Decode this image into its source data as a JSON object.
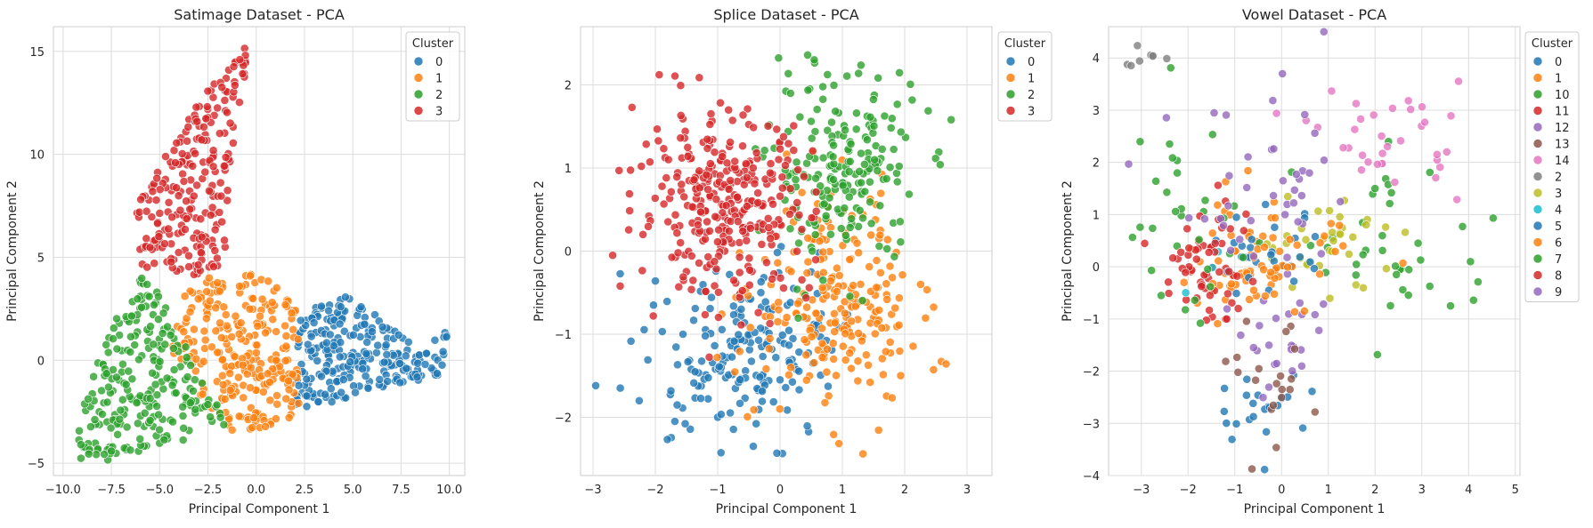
{
  "colors": {
    "0": "#1f77b4",
    "1": "#ff7f0e",
    "2": "#2ca02c",
    "3": "#d62728",
    "4": "#17becf",
    "5": "#1f77b4",
    "6": "#ff7f0e",
    "7": "#2ca02c",
    "8": "#d62728",
    "9": "#9467bd",
    "10": "#2ca02c",
    "11": "#d62728",
    "12": "#9467bd",
    "13": "#8c564b",
    "14": "#e377c2",
    "2v": "#7f7f7f",
    "3v": "#bcbd22"
  },
  "chart_data": [
    {
      "type": "scatter",
      "title": "Satimage Dataset - PCA",
      "xlabel": "Principal Component 1",
      "ylabel": "Principal Component 2",
      "xlim": [
        -10.5,
        10.8
      ],
      "ylim": [
        -5.6,
        16.2
      ],
      "xticks": [
        -10.0,
        -7.5,
        -5.0,
        -2.5,
        0.0,
        2.5,
        5.0,
        7.5,
        10.0
      ],
      "xtick_labels": [
        "−10.0",
        "−7.5",
        "−5.0",
        "−2.5",
        "0.0",
        "2.5",
        "5.0",
        "7.5",
        "10.0"
      ],
      "yticks": [
        -5,
        0,
        5,
        10,
        15
      ],
      "ytick_labels": [
        "−5",
        "0",
        "5",
        "10",
        "15"
      ],
      "grid": true,
      "legend": {
        "title": "Cluster",
        "placement": "top-right",
        "entries": [
          "0",
          "1",
          "2",
          "3"
        ]
      },
      "series": [
        {
          "name": "0",
          "color": "#1f77b4",
          "count": 260,
          "polygon": [
            [
              2.2,
              2.3
            ],
            [
              4.5,
              3.2
            ],
            [
              6.5,
              2.0
            ],
            [
              8.5,
              0.5
            ],
            [
              10.0,
              1.5
            ],
            [
              9.5,
              -0.8
            ],
            [
              7.0,
              -1.3
            ],
            [
              4.0,
              -2.0
            ],
            [
              2.0,
              -2.5
            ]
          ]
        },
        {
          "name": "1",
          "color": "#ff7f0e",
          "count": 260,
          "polygon": [
            [
              -3.8,
              3.5
            ],
            [
              -2.0,
              4.4
            ],
            [
              0.5,
              4.2
            ],
            [
              2.2,
              2.5
            ],
            [
              2.2,
              -2.6
            ],
            [
              0.5,
              -3.3
            ],
            [
              -1.3,
              -3.4
            ],
            [
              -2.2,
              -2.6
            ],
            [
              -4.5,
              0.5
            ]
          ]
        },
        {
          "name": "2",
          "color": "#2ca02c",
          "count": 240,
          "polygon": [
            [
              -7.2,
              2.5
            ],
            [
              -5.8,
              4.2
            ],
            [
              -3.8,
              1.5
            ],
            [
              -2.8,
              -1.0
            ],
            [
              -1.3,
              -3.2
            ],
            [
              -3.5,
              -3.8
            ],
            [
              -6.0,
              -4.5
            ],
            [
              -9.8,
              -5.4
            ],
            [
              -8.8,
              -1.5
            ]
          ]
        },
        {
          "name": "3",
          "color": "#d62728",
          "count": 230,
          "polygon": [
            [
              -6.0,
              4.5
            ],
            [
              -6.3,
              8.0
            ],
            [
              -3.5,
              12.0
            ],
            [
              -0.3,
              15.5
            ],
            [
              -0.8,
              12.0
            ],
            [
              -1.5,
              8.0
            ],
            [
              -1.5,
              4.5
            ],
            [
              -4.0,
              4.0
            ]
          ]
        }
      ]
    },
    {
      "type": "scatter",
      "title": "Splice Dataset - PCA",
      "xlabel": "Principal Component 1",
      "ylabel": "Principal Component 2",
      "xlim": [
        -3.2,
        3.4
      ],
      "ylim": [
        -2.7,
        2.7
      ],
      "xticks": [
        -3,
        -2,
        -1,
        0,
        1,
        2,
        3
      ],
      "xtick_labels": [
        "−3",
        "−2",
        "−1",
        "0",
        "1",
        "2",
        "3"
      ],
      "yticks": [
        -2,
        -1,
        0,
        1,
        2
      ],
      "ytick_labels": [
        "−2",
        "−1",
        "0",
        "1",
        "2"
      ],
      "grid": true,
      "legend": {
        "title": "Cluster",
        "placement": "outside-right",
        "entries": [
          "0",
          "1",
          "2",
          "3"
        ]
      },
      "series": [
        {
          "name": "0",
          "color": "#1f77b4",
          "count": 190,
          "center": [
            -0.6,
            -1.2
          ],
          "spread": [
            0.75,
            0.55
          ]
        },
        {
          "name": "1",
          "color": "#ff7f0e",
          "count": 230,
          "center": [
            0.9,
            -0.6
          ],
          "spread": [
            0.65,
            0.65
          ]
        },
        {
          "name": "2",
          "color": "#2ca02c",
          "count": 200,
          "center": [
            1.0,
            1.0
          ],
          "spread": [
            0.6,
            0.6
          ]
        },
        {
          "name": "3",
          "color": "#d62728",
          "count": 320,
          "center": [
            -0.9,
            0.55
          ],
          "spread": [
            0.7,
            0.55
          ]
        }
      ]
    },
    {
      "type": "scatter",
      "title": "Vowel Dataset - PCA",
      "xlabel": "Principal Component 1",
      "ylabel": "Principal Component 2",
      "xlim": [
        -3.7,
        5.1
      ],
      "ylim": [
        -4.0,
        4.6
      ],
      "xticks": [
        -3,
        -2,
        -1,
        0,
        1,
        2,
        3,
        4,
        5
      ],
      "xtick_labels": [
        "−3",
        "−2",
        "−1",
        "0",
        "1",
        "2",
        "3",
        "4",
        "5"
      ],
      "yticks": [
        -4,
        -3,
        -2,
        -1,
        0,
        1,
        2,
        3,
        4
      ],
      "ytick_labels": [
        "−4",
        "−3",
        "−2",
        "−1",
        "0",
        "1",
        "2",
        "3",
        "4"
      ],
      "grid": true,
      "legend": {
        "title": "Cluster",
        "placement": "outside-right",
        "entries": [
          "0",
          "1",
          "10",
          "11",
          "12",
          "13",
          "14",
          "2",
          "3",
          "4",
          "5",
          "6",
          "7",
          "8",
          "9"
        ]
      },
      "series": [
        {
          "name": "0",
          "color": "#1f77b4",
          "count": 22,
          "center": [
            -0.4,
            -2.7
          ],
          "spread": [
            0.5,
            0.35
          ]
        },
        {
          "name": "1",
          "color": "#ff7f0e",
          "count": 40,
          "center": [
            -0.9,
            0.2
          ],
          "spread": [
            0.55,
            0.6
          ]
        },
        {
          "name": "10",
          "color": "#2ca02c",
          "count": 40,
          "center": [
            2.5,
            0.4
          ],
          "spread": [
            1.1,
            0.9
          ]
        },
        {
          "name": "11",
          "color": "#d62728",
          "count": 30,
          "center": [
            -1.8,
            -0.3
          ],
          "spread": [
            0.4,
            0.5
          ]
        },
        {
          "name": "12",
          "color": "#9467bd",
          "count": 25,
          "center": [
            0.2,
            -1.4
          ],
          "spread": [
            0.45,
            0.6
          ]
        },
        {
          "name": "13",
          "color": "#8c564b",
          "count": 20,
          "center": [
            -0.2,
            -2.2
          ],
          "spread": [
            0.55,
            0.6
          ]
        },
        {
          "name": "14",
          "color": "#e377c2",
          "count": 35,
          "center": [
            2.3,
            2.5
          ],
          "spread": [
            0.8,
            0.5
          ]
        },
        {
          "name": "2",
          "color": "#7f7f7f",
          "count": 8,
          "center": [
            -3.0,
            4.0
          ],
          "spread": [
            0.2,
            0.15
          ]
        },
        {
          "name": "3",
          "color": "#bcbd22",
          "count": 35,
          "center": [
            1.0,
            0.5
          ],
          "spread": [
            0.8,
            0.45
          ]
        },
        {
          "name": "4",
          "color": "#17becf",
          "count": 3,
          "center": [
            -1.8,
            -0.2
          ],
          "spread": [
            0.4,
            0.3
          ]
        },
        {
          "name": "5",
          "color": "#1f77b4",
          "count": 30,
          "center": [
            -0.3,
            0.2
          ],
          "spread": [
            0.6,
            0.4
          ]
        },
        {
          "name": "6",
          "color": "#ff7f0e",
          "count": 35,
          "center": [
            0.1,
            -0.1
          ],
          "spread": [
            0.7,
            0.5
          ]
        },
        {
          "name": "7",
          "color": "#2ca02c",
          "count": 30,
          "center": [
            -2.2,
            1.0
          ],
          "spread": [
            0.6,
            1.0
          ]
        },
        {
          "name": "8",
          "color": "#d62728",
          "count": 30,
          "center": [
            -1.4,
            0.2
          ],
          "spread": [
            0.6,
            0.6
          ]
        },
        {
          "name": "9",
          "color": "#9467bd",
          "count": 40,
          "center": [
            -0.3,
            1.2
          ],
          "spread": [
            1.0,
            1.0
          ]
        }
      ]
    }
  ]
}
